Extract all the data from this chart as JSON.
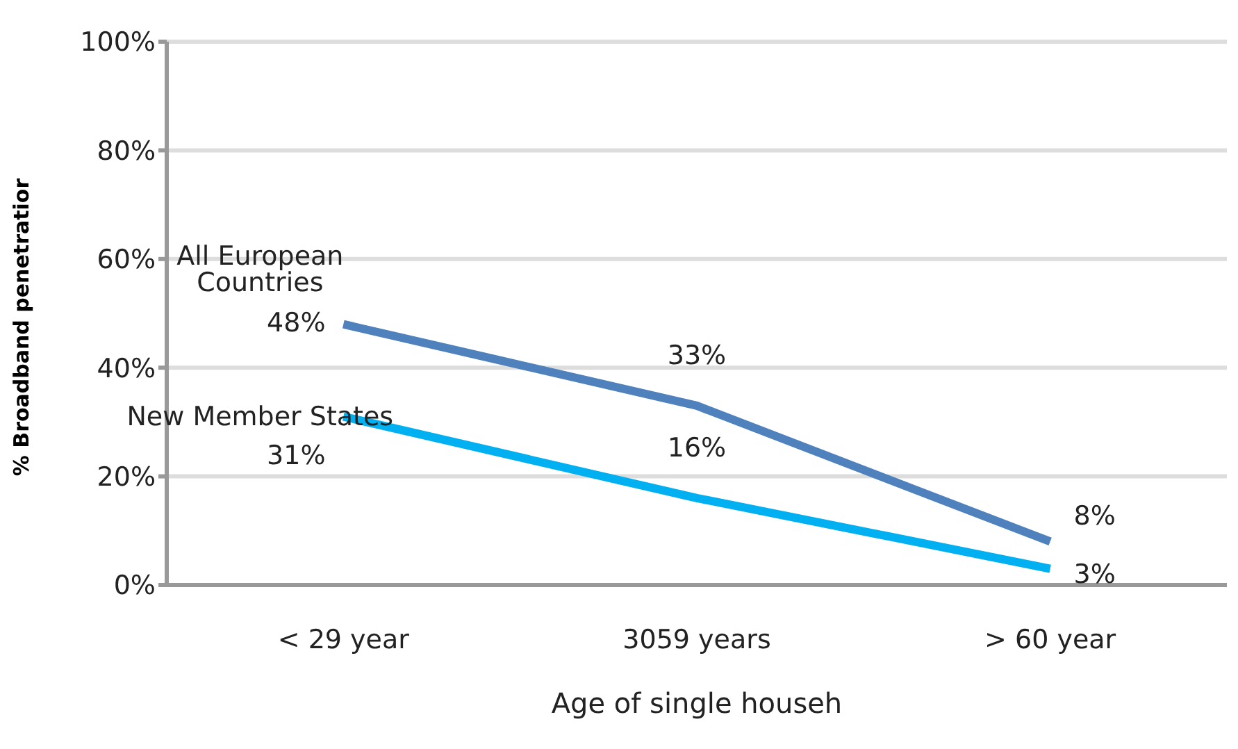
{
  "chart_data": {
    "type": "line",
    "xlabel": "Age of single househ",
    "ylabel": "% Broadband penetratior",
    "categories": [
      "< 29 year",
      "3059 years",
      "> 60 year"
    ],
    "series": [
      {
        "name": "All European Countries",
        "color": "#4f81bd",
        "values": [
          48,
          33,
          8
        ],
        "value_labels": [
          "48%",
          "33%",
          "8%"
        ]
      },
      {
        "name": "New Member States",
        "color": "#00b0f0",
        "values": [
          31,
          16,
          3
        ],
        "value_labels": [
          "31%",
          "16%",
          "3%"
        ]
      }
    ],
    "ylim": [
      0,
      100
    ],
    "yticks": [
      {
        "value": 0,
        "label": "0%"
      },
      {
        "value": 20,
        "label": "20%"
      },
      {
        "value": 40,
        "label": "40%"
      },
      {
        "value": 60,
        "label": "60%"
      },
      {
        "value": 80,
        "label": "80%"
      },
      {
        "value": 100,
        "label": "100%"
      }
    ],
    "grid": "y",
    "marker": "none",
    "line_style": "solid",
    "legend": false
  }
}
